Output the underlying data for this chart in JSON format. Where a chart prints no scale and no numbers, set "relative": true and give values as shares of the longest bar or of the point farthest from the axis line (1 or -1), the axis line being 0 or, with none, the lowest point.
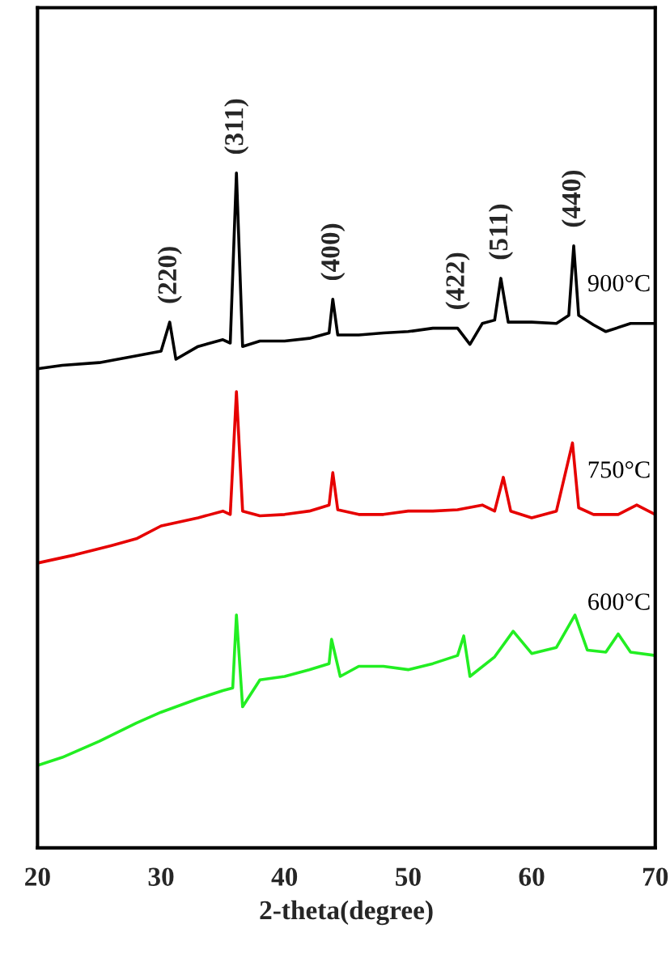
{
  "chart_data": {
    "type": "line",
    "relative": true,
    "xlabel": "2-theta(degree)",
    "xlim": [
      20,
      70
    ],
    "xticks": [
      20,
      30,
      40,
      50,
      60,
      70
    ],
    "tick_labels": "x",
    "grid": false,
    "legend": false,
    "series": [
      {
        "name": "900°C",
        "color": "#000000",
        "x": [
          20,
          22,
          25,
          28,
          30,
          30.7,
          31.2,
          33,
          35,
          35.6,
          36.1,
          36.6,
          38,
          40,
          42,
          43.6,
          43.9,
          44.3,
          46,
          48,
          50,
          52,
          54,
          55,
          56,
          57,
          57.5,
          58.1,
          60,
          62,
          63,
          63.4,
          63.8,
          65,
          66,
          68,
          70
        ],
        "values": [
          0.71,
          0.715,
          0.719,
          0.729,
          0.736,
          0.779,
          0.724,
          0.743,
          0.753,
          0.748,
          1,
          0.743,
          0.751,
          0.751,
          0.755,
          0.763,
          0.813,
          0.76,
          0.76,
          0.763,
          0.765,
          0.77,
          0.77,
          0.746,
          0.777,
          0.782,
          0.844,
          0.779,
          0.779,
          0.777,
          0.789,
          0.892,
          0.789,
          0.775,
          0.765,
          0.777,
          0.777
        ]
      },
      {
        "name": "750°C",
        "color": "#e60000",
        "x": [
          20,
          23,
          26,
          28,
          30,
          33,
          35,
          35.6,
          36.1,
          36.6,
          38,
          40,
          42,
          43.6,
          43.9,
          44.3,
          46,
          48,
          50,
          52,
          54,
          56,
          57,
          57.7,
          58.3,
          60,
          62,
          63.3,
          63.8,
          65,
          67,
          68.5,
          70
        ],
        "values": [
          0.422,
          0.434,
          0.448,
          0.458,
          0.477,
          0.489,
          0.499,
          0.494,
          0.676,
          0.499,
          0.492,
          0.494,
          0.499,
          0.508,
          0.556,
          0.501,
          0.494,
          0.494,
          0.499,
          0.499,
          0.501,
          0.508,
          0.499,
          0.549,
          0.499,
          0.489,
          0.499,
          0.6,
          0.504,
          0.494,
          0.494,
          0.508,
          0.494
        ]
      },
      {
        "name": "600°C",
        "color": "#22ee22",
        "x": [
          20,
          22,
          25,
          28,
          30,
          33,
          35,
          35.8,
          36.1,
          36.6,
          38,
          40,
          42,
          43.6,
          43.8,
          44.5,
          46,
          48,
          50,
          52,
          54,
          54.5,
          55,
          57,
          58.5,
          60,
          62,
          63.5,
          64.5,
          66,
          67,
          68,
          70
        ],
        "values": [
          0.122,
          0.134,
          0.158,
          0.185,
          0.201,
          0.221,
          0.233,
          0.237,
          0.345,
          0.209,
          0.249,
          0.254,
          0.264,
          0.273,
          0.309,
          0.254,
          0.269,
          0.269,
          0.264,
          0.273,
          0.285,
          0.314,
          0.254,
          0.283,
          0.321,
          0.288,
          0.297,
          0.345,
          0.293,
          0.29,
          0.317,
          0.29,
          0.285
        ]
      }
    ],
    "annotations": [
      {
        "text": "(220)",
        "x": 30.7,
        "y": 0.779
      },
      {
        "text": "(311)",
        "x": 36.1,
        "y": 1
      },
      {
        "text": "(400)",
        "x": 43.9,
        "y": 0.813
      },
      {
        "text": "(422)",
        "x": 54.0,
        "y": 0.77
      },
      {
        "text": "(511)",
        "x": 57.5,
        "y": 0.844
      },
      {
        "text": "(440)",
        "x": 63.4,
        "y": 0.892
      }
    ]
  }
}
